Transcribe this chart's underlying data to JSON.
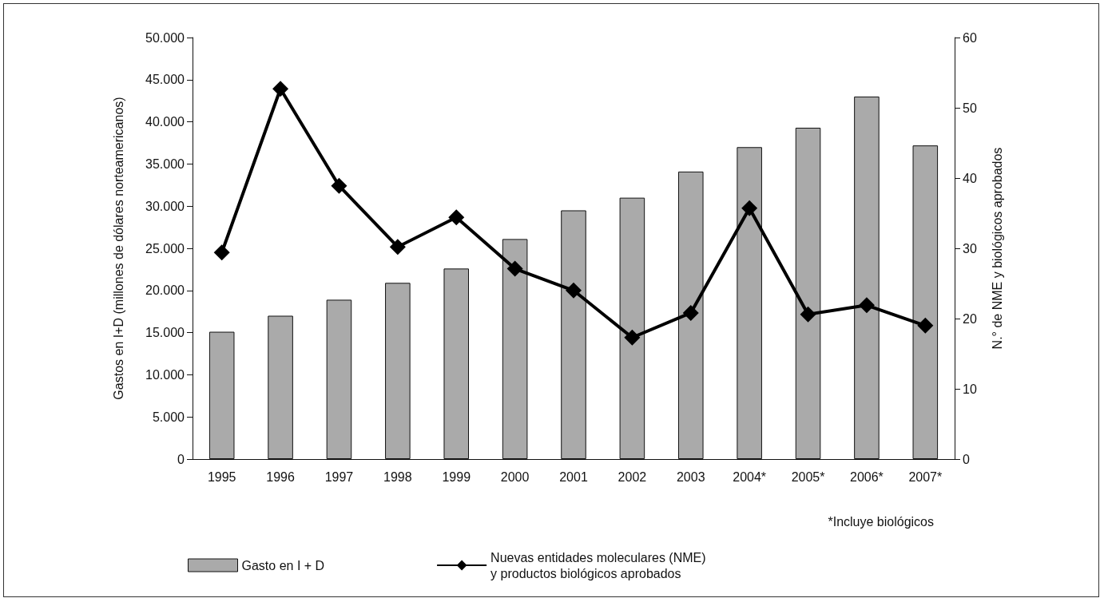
{
  "chart_data": {
    "type": "bar",
    "categories": [
      "1995",
      "1996",
      "1997",
      "1998",
      "1999",
      "2000",
      "2001",
      "2002",
      "2003",
      "2004*",
      "2005*",
      "2006*",
      "2007*"
    ],
    "ylabel": "Gastos en I+D (millones de dólares norteamericanos)",
    "y2label": "N.° de NME y biológicos aprobados",
    "ylim": [
      0,
      50000
    ],
    "yticks": [
      {
        "value": 0,
        "label": "0"
      },
      {
        "value": 5000,
        "label": "5.000"
      },
      {
        "value": 10000,
        "label": "10.000"
      },
      {
        "value": 15000,
        "label": "15.000"
      },
      {
        "value": 20000,
        "label": "20.000"
      },
      {
        "value": 25000,
        "label": "25.000"
      },
      {
        "value": 30000,
        "label": "30.000"
      },
      {
        "value": 35000,
        "label": "35.000"
      },
      {
        "value": 40000,
        "label": "40.000"
      },
      {
        "value": 45000,
        "label": "45.000"
      },
      {
        "value": 50000,
        "label": "50.000"
      }
    ],
    "y2lim": [
      0,
      60
    ],
    "y2ticks": [
      0,
      10,
      20,
      30,
      40,
      50,
      60
    ],
    "series": [
      {
        "name": "Gasto en I + D",
        "color": "#aaaaaa",
        "values": [
          15100,
          17000,
          18900,
          20900,
          22600,
          26100,
          29500,
          31000,
          34100,
          37000,
          39300,
          43000,
          37200
        ]
      },
      {
        "name": "Nuevas entidades moleculares (NME)\ny productos biológicos aprobados",
        "type": "line",
        "axis": "y2",
        "color": "#000000",
        "marker": "diamond",
        "values": [
          29.4,
          52.7,
          38.9,
          30.2,
          34.4,
          27.1,
          24.0,
          17.3,
          20.8,
          35.7,
          20.6,
          21.9,
          19.0
        ]
      }
    ],
    "annotations": [
      "*Incluye biológicos"
    ],
    "legend": "bottom",
    "grid": false
  }
}
